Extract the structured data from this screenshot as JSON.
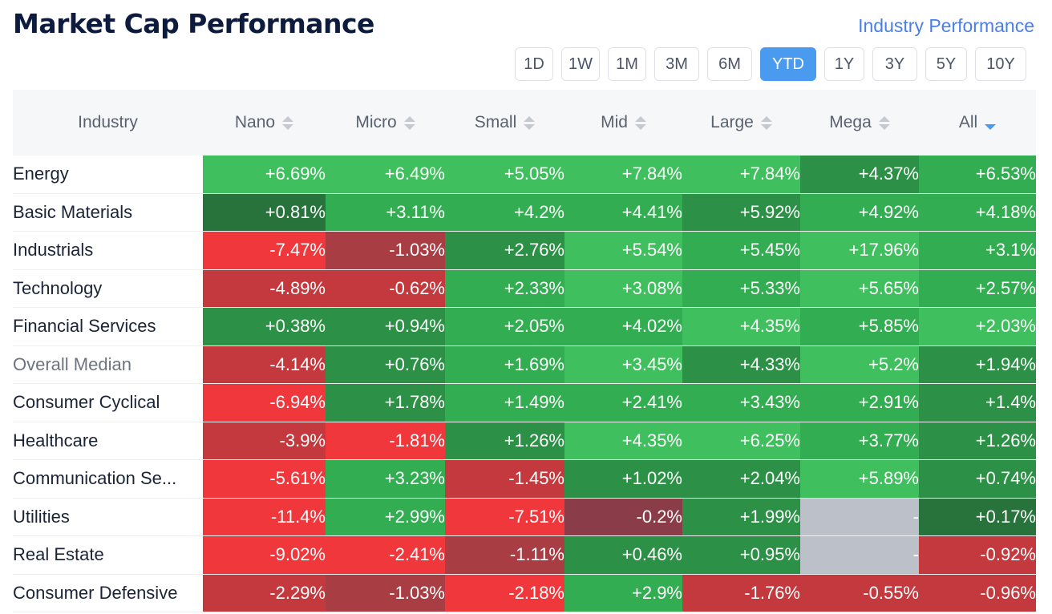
{
  "page": {
    "title": "Market Cap Performance",
    "link": "Industry Performance"
  },
  "timeframes": [
    {
      "label": "1D",
      "active": false
    },
    {
      "label": "1W",
      "active": false
    },
    {
      "label": "1M",
      "active": false
    },
    {
      "label": "3M",
      "active": false
    },
    {
      "label": "6M",
      "active": false
    },
    {
      "label": "YTD",
      "active": true
    },
    {
      "label": "1Y",
      "active": false
    },
    {
      "label": "3Y",
      "active": false
    },
    {
      "label": "5Y",
      "active": false
    },
    {
      "label": "10Y",
      "active": false
    }
  ],
  "table": {
    "columns": [
      "Industry",
      "Nano",
      "Micro",
      "Small",
      "Mid",
      "Large",
      "Mega",
      "All"
    ],
    "sorted_column": "All",
    "sort_direction": "descending",
    "colors": {
      "g1": "#3fbf5d",
      "g2": "#33ad51",
      "g3": "#2c9146",
      "g4": "#28723c",
      "r1": "#f0383c",
      "r2": "#c4393d",
      "r3": "#a83d44",
      "r4": "#8a3d48",
      "nd": "#bcc0c8"
    },
    "rows": [
      {
        "name": "Energy",
        "values": [
          "+6.69%",
          "+6.49%",
          "+5.05%",
          "+7.84%",
          "+7.84%",
          "+4.37%",
          "+6.53%"
        ],
        "shades": [
          "g1",
          "g1",
          "g1",
          "g1",
          "g1",
          "g3",
          "g2"
        ]
      },
      {
        "name": "Basic Materials",
        "values": [
          "+0.81%",
          "+3.11%",
          "+4.2%",
          "+4.41%",
          "+5.92%",
          "+4.92%",
          "+4.18%"
        ],
        "shades": [
          "g4",
          "g2",
          "g2",
          "g2",
          "g3",
          "g2",
          "g2"
        ]
      },
      {
        "name": "Industrials",
        "values": [
          "-7.47%",
          "-1.03%",
          "+2.76%",
          "+5.54%",
          "+5.45%",
          "+17.96%",
          "+3.1%"
        ],
        "shades": [
          "r1",
          "r3",
          "g3",
          "g1",
          "g2",
          "g1",
          "g2"
        ]
      },
      {
        "name": "Technology",
        "values": [
          "-4.89%",
          "-0.62%",
          "+2.33%",
          "+3.08%",
          "+5.33%",
          "+5.65%",
          "+2.57%"
        ],
        "shades": [
          "r2",
          "r2",
          "g2",
          "g1",
          "g2",
          "g1",
          "g2"
        ]
      },
      {
        "name": "Financial Services",
        "values": [
          "+0.38%",
          "+0.94%",
          "+2.05%",
          "+4.02%",
          "+4.35%",
          "+5.85%",
          "+2.03%"
        ],
        "shades": [
          "g3",
          "g3",
          "g2",
          "g2",
          "g1",
          "g2",
          "g1"
        ]
      },
      {
        "name": "Overall Median",
        "median": true,
        "values": [
          "-4.14%",
          "+0.76%",
          "+1.69%",
          "+3.45%",
          "+4.33%",
          "+5.2%",
          "+1.94%"
        ],
        "shades": [
          "r2",
          "g3",
          "g2",
          "g1",
          "g3",
          "g1",
          "g3"
        ]
      },
      {
        "name": "Consumer Cyclical",
        "values": [
          "-6.94%",
          "+1.78%",
          "+1.49%",
          "+2.41%",
          "+3.43%",
          "+2.91%",
          "+1.4%"
        ],
        "shades": [
          "r1",
          "g3",
          "g2",
          "g2",
          "g2",
          "g2",
          "g3"
        ]
      },
      {
        "name": "Healthcare",
        "values": [
          "-3.9%",
          "-1.81%",
          "+1.26%",
          "+4.35%",
          "+6.25%",
          "+3.77%",
          "+1.26%"
        ],
        "shades": [
          "r2",
          "r1",
          "g3",
          "g1",
          "g1",
          "g2",
          "g3"
        ]
      },
      {
        "name": "Communication Se...",
        "values": [
          "-5.61%",
          "+3.23%",
          "-1.45%",
          "+1.02%",
          "+2.04%",
          "+5.89%",
          "+0.74%"
        ],
        "shades": [
          "r1",
          "g2",
          "r2",
          "g3",
          "g3",
          "g1",
          "g3"
        ]
      },
      {
        "name": "Utilities",
        "values": [
          "-11.4%",
          "+2.99%",
          "-7.51%",
          "-0.2%",
          "+1.99%",
          "-",
          "+0.17%"
        ],
        "shades": [
          "r1",
          "g2",
          "r1",
          "r4",
          "g3",
          "nd",
          "g4"
        ]
      },
      {
        "name": "Real Estate",
        "values": [
          "-9.02%",
          "-2.41%",
          "-1.11%",
          "+0.46%",
          "+0.95%",
          "-",
          "-0.92%"
        ],
        "shades": [
          "r1",
          "r1",
          "r3",
          "g3",
          "g3",
          "nd",
          "r2"
        ]
      },
      {
        "name": "Consumer Defensive",
        "values": [
          "-2.29%",
          "-1.03%",
          "-2.18%",
          "+2.9%",
          "-1.76%",
          "-0.55%",
          "-0.96%"
        ],
        "shades": [
          "r2",
          "r3",
          "r1",
          "g2",
          "r2",
          "r2",
          "r2"
        ]
      }
    ]
  }
}
